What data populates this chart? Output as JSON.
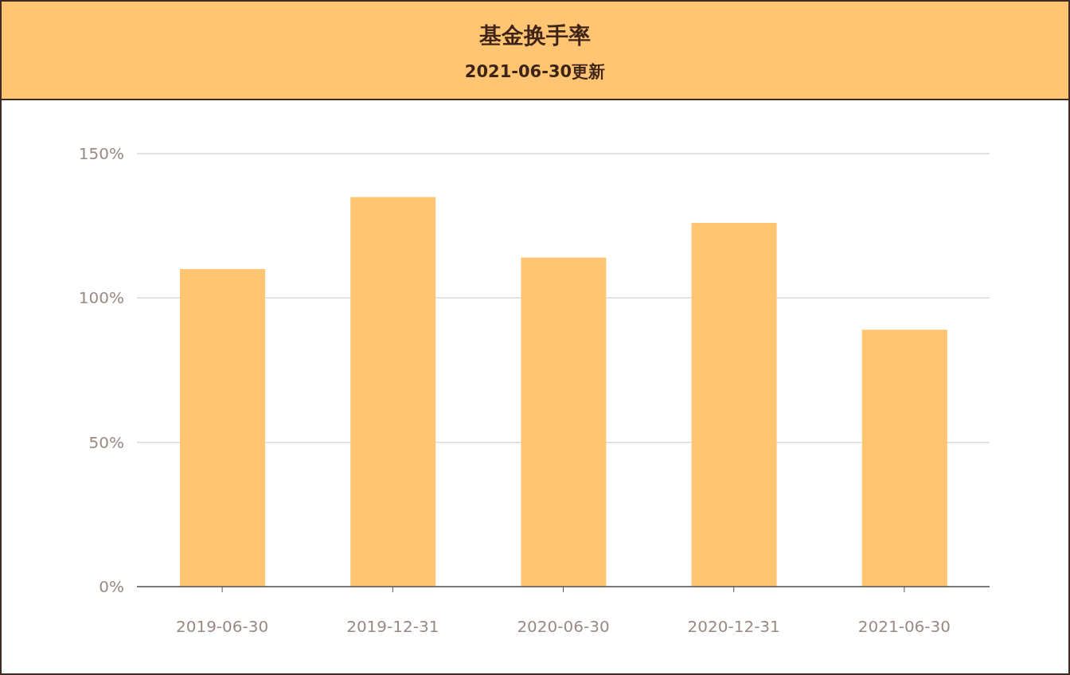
{
  "chart_data": {
    "type": "bar",
    "title": "基金换手率",
    "subtitle": "2021-06-30更新",
    "categories": [
      "2019-06-30",
      "2019-12-31",
      "2020-06-30",
      "2020-12-31",
      "2021-06-30"
    ],
    "values": [
      110,
      135,
      114,
      126,
      89
    ],
    "color": "#ffc573",
    "ylim": [
      0,
      150
    ],
    "yticks": [
      {
        "value": 0,
        "label": "0%"
      },
      {
        "value": 50,
        "label": "50%"
      },
      {
        "value": 100,
        "label": "100%"
      },
      {
        "value": 150,
        "label": "150%"
      }
    ],
    "grid": "y",
    "legend": false
  }
}
